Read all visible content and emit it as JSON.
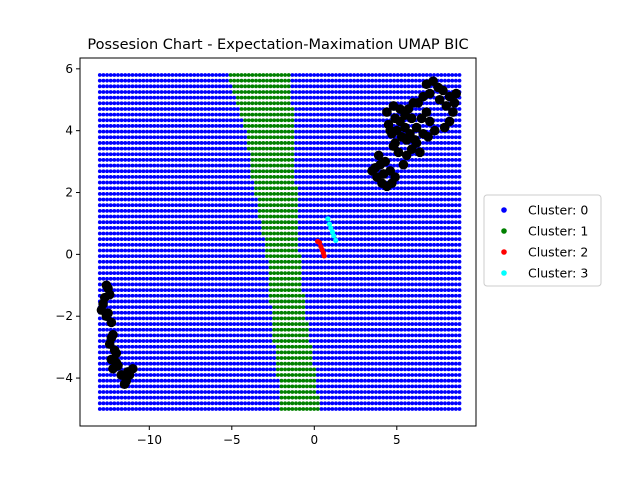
{
  "chart_data": {
    "type": "scatter",
    "title": "Possesion Chart - Expectation-Maximation UMAP BIC",
    "xlabel": "",
    "ylabel": "",
    "xlim": [
      -14.2,
      9.8
    ],
    "ylim": [
      -5.55,
      6.35
    ],
    "x_ticks": [
      -10,
      -5,
      0,
      5
    ],
    "x_tick_labels": [
      "−10",
      "−5",
      "0",
      "5"
    ],
    "y_ticks": [
      -4,
      -2,
      0,
      2,
      4,
      6
    ],
    "y_tick_labels": [
      "−4",
      "−2",
      "0",
      "2",
      "4",
      "6"
    ],
    "grid": false,
    "legend_position": "right-outside",
    "grid_x_range": [
      -13,
      8.8
    ],
    "grid_y_range": [
      -5,
      5.8
    ],
    "green_band": [
      {
        "y": 5.8,
        "x0": -5.2,
        "x1": -1.5
      },
      {
        "y": 4.0,
        "x0": -4.2,
        "x1": -1.2
      },
      {
        "y": 2.0,
        "x0": -3.6,
        "x1": -1.1
      },
      {
        "y": 0.0,
        "x0": -2.9,
        "x1": -0.9
      },
      {
        "y": -2.0,
        "x0": -2.6,
        "x1": -0.5
      },
      {
        "y": -4.0,
        "x0": -2.2,
        "x1": 0.1
      },
      {
        "y": -5.0,
        "x0": -2.1,
        "x1": 0.3
      }
    ],
    "series": [
      {
        "name": "Cluster: 0",
        "color": "#0000ff",
        "fill_region": "grid"
      },
      {
        "name": "Cluster: 1",
        "color": "#008000",
        "fill_region": "green_band"
      },
      {
        "name": "Cluster: 2",
        "color": "#ff0000",
        "points": [
          [
            0.2,
            0.42
          ],
          [
            0.32,
            0.38
          ],
          [
            0.4,
            0.25
          ],
          [
            0.48,
            0.15
          ],
          [
            0.55,
            0.05
          ],
          [
            0.6,
            -0.05
          ]
        ]
      },
      {
        "name": "Cluster: 3",
        "color": "#00ffff",
        "points": [
          [
            0.82,
            1.15
          ],
          [
            0.92,
            0.98
          ],
          [
            1.0,
            0.85
          ],
          [
            1.1,
            0.72
          ],
          [
            1.18,
            0.6
          ],
          [
            1.3,
            0.45
          ]
        ]
      }
    ],
    "overlay_points": {
      "color": "#000000",
      "points": [
        [
          7.2,
          5.6
        ],
        [
          7.5,
          5.4
        ],
        [
          6.8,
          5.5
        ],
        [
          7.0,
          5.2
        ],
        [
          7.8,
          5.3
        ],
        [
          8.2,
          5.1
        ],
        [
          8.5,
          4.9
        ],
        [
          8.4,
          4.6
        ],
        [
          8.2,
          4.3
        ],
        [
          7.9,
          4.1
        ],
        [
          6.6,
          5.1
        ],
        [
          6.3,
          4.9
        ],
        [
          6.0,
          4.9
        ],
        [
          5.7,
          4.7
        ],
        [
          5.5,
          4.5
        ],
        [
          5.2,
          4.3
        ],
        [
          5.0,
          4.0
        ],
        [
          5.3,
          3.8
        ],
        [
          5.8,
          3.9
        ],
        [
          6.2,
          4.1
        ],
        [
          6.5,
          4.4
        ],
        [
          6.8,
          4.6
        ],
        [
          7.0,
          4.3
        ],
        [
          6.6,
          3.9
        ],
        [
          6.2,
          3.6
        ],
        [
          5.9,
          3.4
        ],
        [
          5.6,
          3.2
        ],
        [
          5.4,
          2.9
        ],
        [
          5.1,
          3.3
        ],
        [
          4.9,
          3.6
        ],
        [
          4.7,
          3.9
        ],
        [
          4.5,
          4.2
        ],
        [
          4.4,
          4.6
        ],
        [
          4.6,
          4.0
        ],
        [
          4.8,
          3.5
        ],
        [
          4.3,
          3.0
        ],
        [
          4.0,
          2.9
        ],
        [
          3.7,
          2.8
        ],
        [
          3.5,
          2.7
        ],
        [
          3.8,
          2.5
        ],
        [
          4.1,
          2.3
        ],
        [
          4.4,
          2.2
        ],
        [
          4.7,
          2.3
        ],
        [
          4.9,
          2.5
        ],
        [
          5.6,
          3.7
        ],
        [
          6.1,
          3.7
        ],
        [
          5.2,
          4.7
        ],
        [
          4.8,
          4.8
        ],
        [
          4.9,
          4.4
        ],
        [
          5.9,
          4.4
        ],
        [
          7.6,
          5.0
        ],
        [
          8.0,
          4.8
        ],
        [
          8.6,
          5.2
        ],
        [
          6.9,
          3.8
        ],
        [
          7.3,
          4.0
        ],
        [
          6.4,
          3.3
        ],
        [
          4.2,
          2.6
        ],
        [
          3.9,
          3.2
        ],
        [
          4.6,
          2.7
        ],
        [
          5.5,
          4.1
        ],
        [
          -12.6,
          -1.0
        ],
        [
          -12.4,
          -1.3
        ],
        [
          -12.8,
          -1.6
        ],
        [
          -12.5,
          -1.9
        ],
        [
          -12.3,
          -2.2
        ],
        [
          -12.7,
          -1.4
        ],
        [
          -12.9,
          -1.8
        ],
        [
          -12.6,
          -2.0
        ],
        [
          -12.2,
          -2.6
        ],
        [
          -12.4,
          -2.9
        ],
        [
          -12.1,
          -3.1
        ],
        [
          -12.3,
          -3.4
        ],
        [
          -11.9,
          -3.6
        ],
        [
          -12.2,
          -3.7
        ],
        [
          -11.7,
          -3.9
        ],
        [
          -11.4,
          -4.1
        ],
        [
          -11.2,
          -3.9
        ],
        [
          -11.0,
          -3.7
        ],
        [
          -11.3,
          -3.8
        ],
        [
          -11.5,
          -4.2
        ],
        [
          -12.0,
          -3.2
        ],
        [
          -12.3,
          -2.7
        ],
        [
          -12.5,
          -1.1
        ],
        [
          -12.0,
          -3.5
        ]
      ]
    }
  }
}
